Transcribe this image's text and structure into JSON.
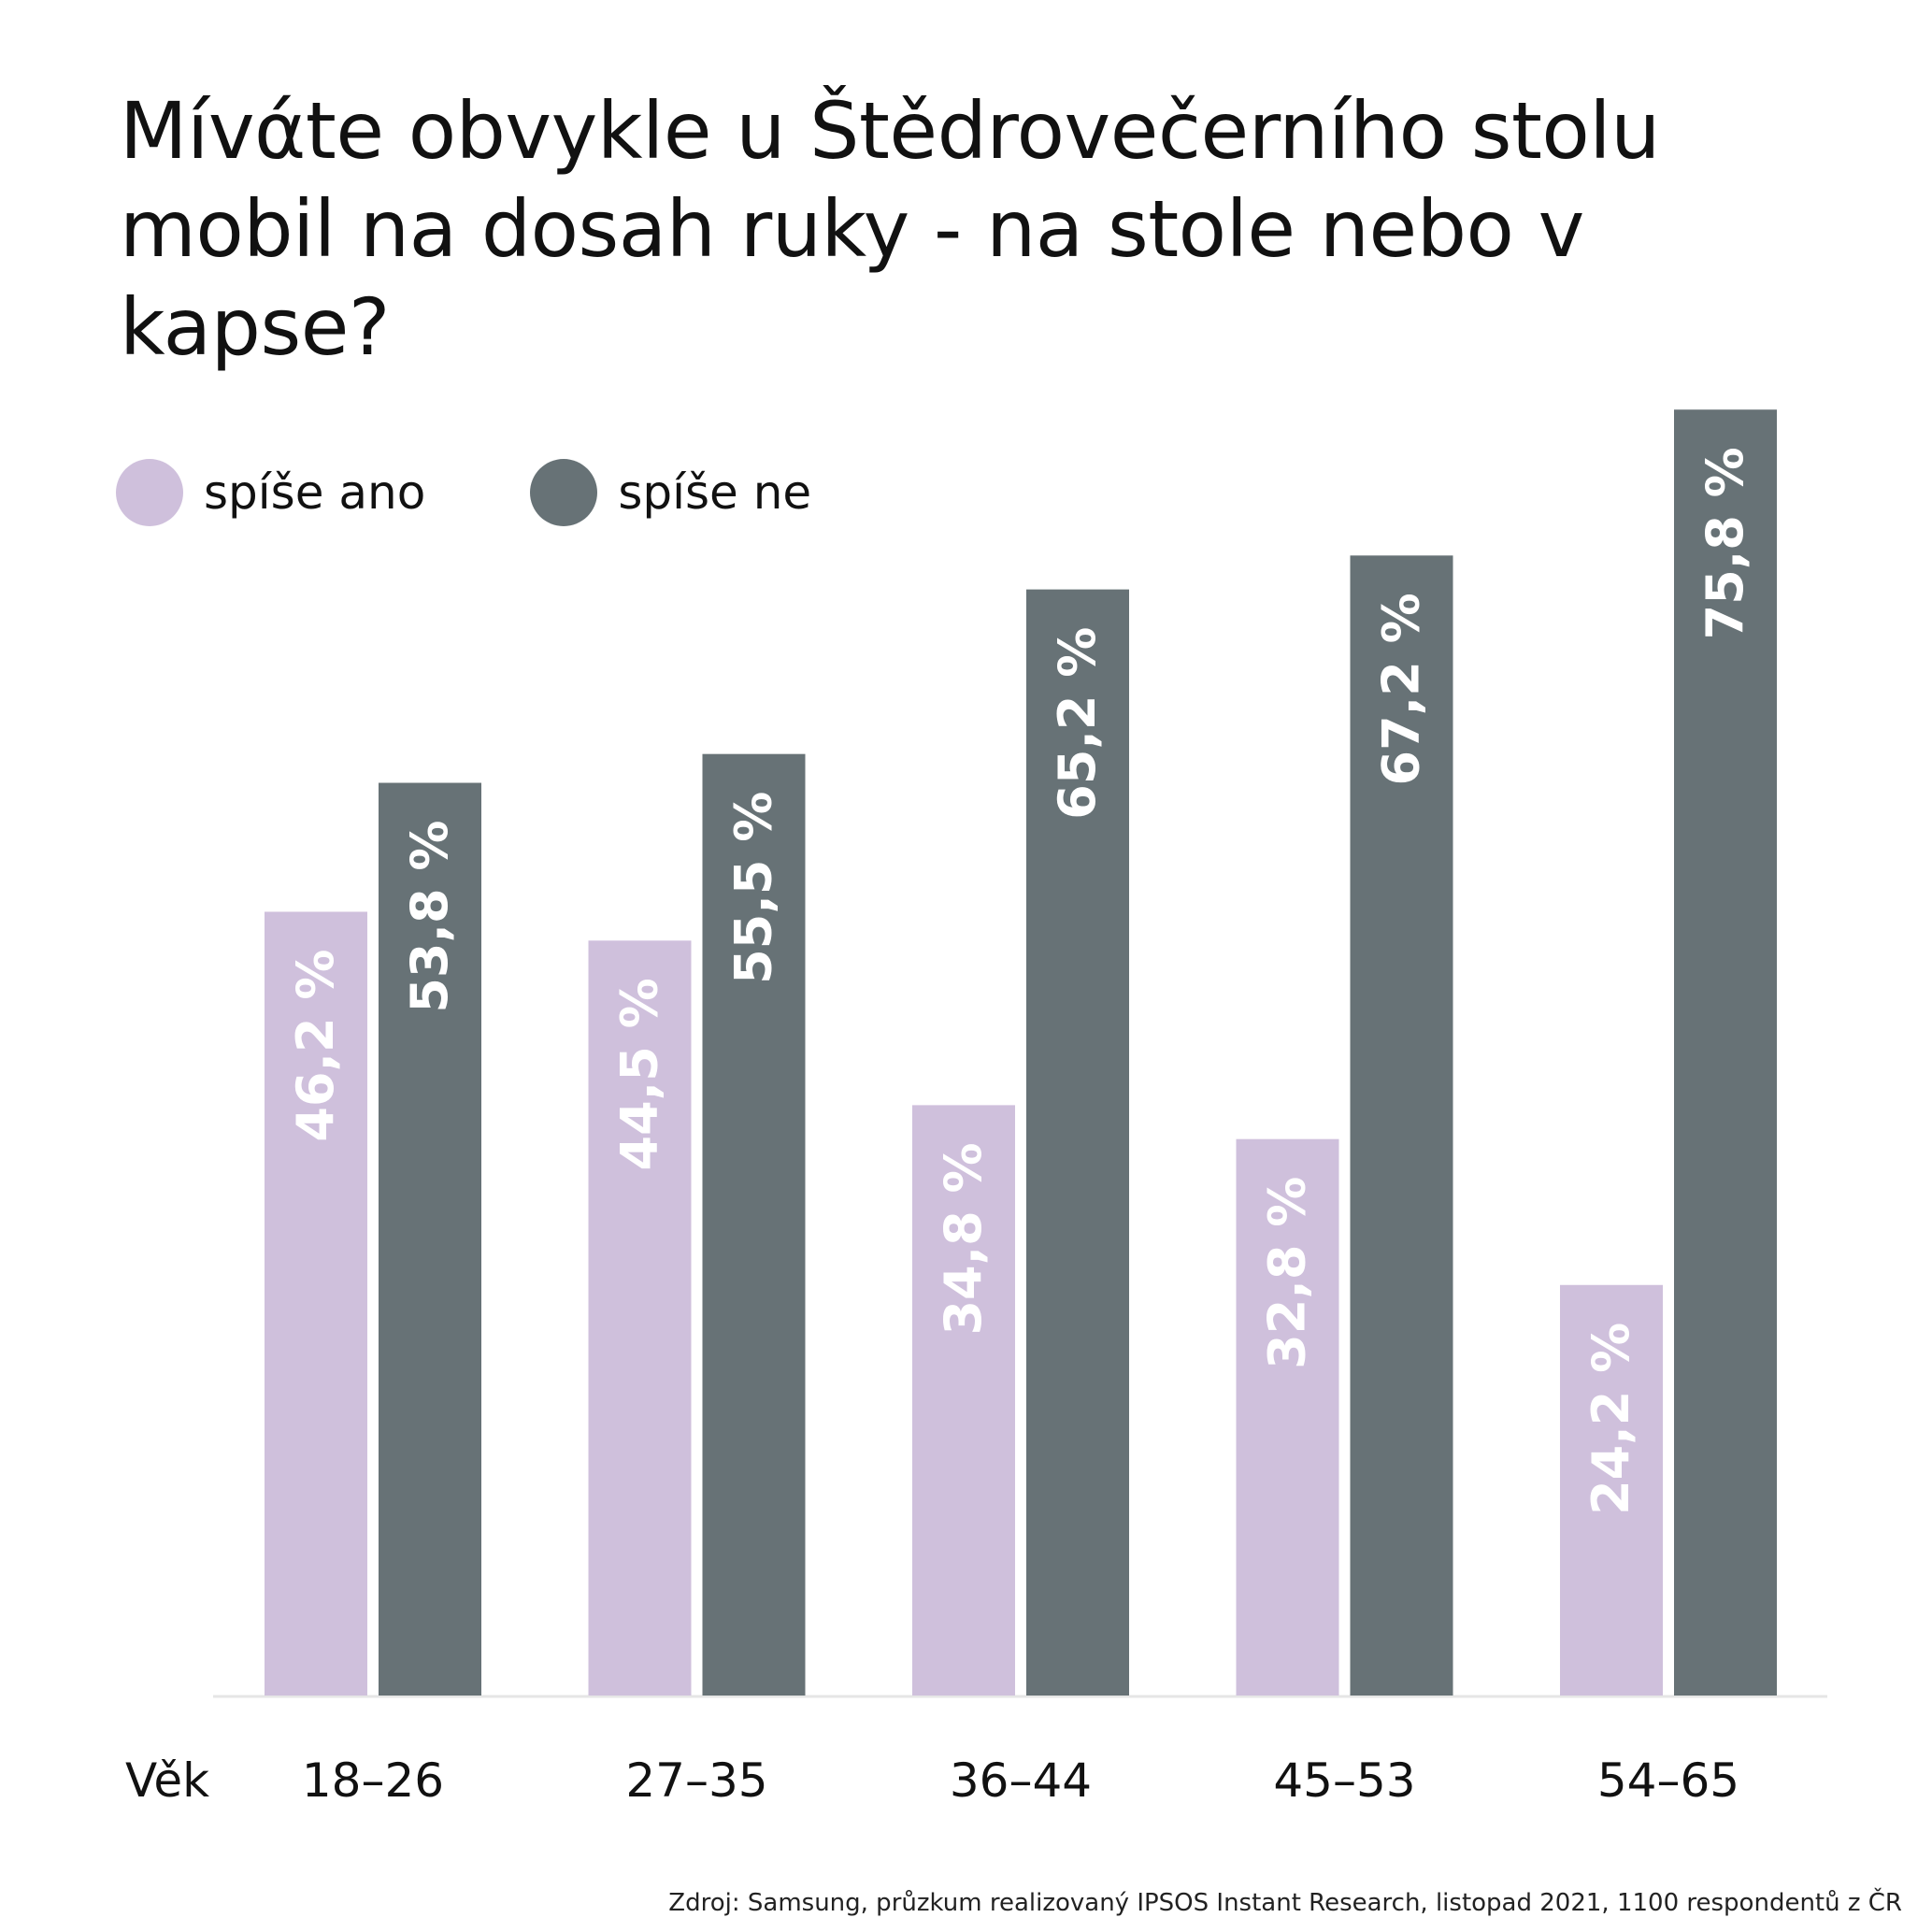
{
  "title": "Mívάte obvykle u Štědrovečerního stolu mobil na dosah ruky - na stole nebo v kapse?",
  "source": "Zdroj: Samsung, průzkum realizovaný IPSOS Instant Research, listopad 2021, 1100 respondentů z ČR",
  "colors": {
    "ano": "#cfc0dc",
    "ne": "#677276",
    "bar_label": "#ffffff",
    "axis_line": "#e6e6e6",
    "text": "#111111"
  },
  "chart_data": {
    "type": "bar",
    "title": "Mívάte obvykle u Štědrovečerního stolu mobil na dosah ruky - na stole nebo v kapse?",
    "xlabel": "Věk",
    "ylabel": "",
    "categories": [
      "18–26",
      "27–35",
      "36–44",
      "45–53",
      "54–65"
    ],
    "series": [
      {
        "name": "spíše ano",
        "color": "#cfc0dc",
        "values": [
          46.2,
          44.5,
          34.8,
          32.8,
          24.2
        ],
        "labels": [
          "46,2 %",
          "44,5 %",
          "34,8 %",
          "32,8 %",
          "24,2 %"
        ]
      },
      {
        "name": "spíše ne",
        "color": "#677276",
        "values": [
          53.8,
          55.5,
          65.2,
          67.2,
          75.8
        ],
        "labels": [
          "53,8 %",
          "55,5 %",
          "65,2 %",
          "67,2 %",
          "75,8 %"
        ]
      }
    ],
    "ylim": [
      0,
      100
    ],
    "grid": false,
    "legend_position": "top-left",
    "data_labels": "inside-bar-rotated"
  }
}
